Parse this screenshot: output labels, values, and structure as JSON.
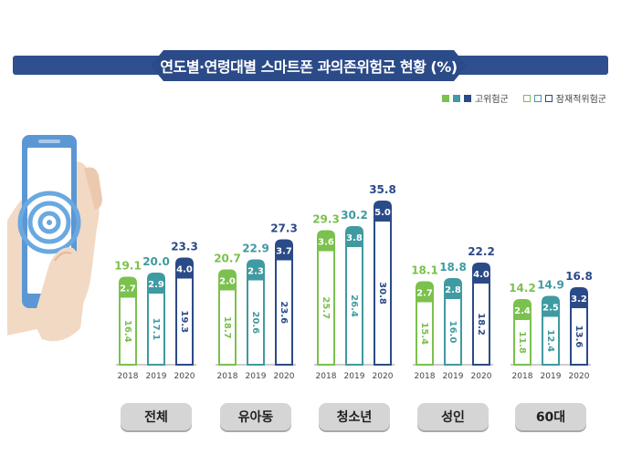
{
  "title": "연도별·연령대별 스마트폰 과의존위험군 현황 (%)",
  "legend": {
    "high_risk": "고위험군",
    "potential_risk": "잠재적위험군"
  },
  "colors": {
    "green": "#7ac14d",
    "teal": "#3f9aa1",
    "navy": "#2b4a88"
  },
  "chart_data": {
    "type": "bar",
    "stacked": true,
    "title": "연도별·연령대별 스마트폰 과의존위험군 현황 (%)",
    "groups": [
      "전체",
      "유아동",
      "청소년",
      "성인",
      "60대"
    ],
    "years": [
      "2018",
      "2019",
      "2020"
    ],
    "series": [
      {
        "name": "잠재적위험군",
        "values": [
          [
            16.4,
            17.1,
            19.3
          ],
          [
            18.7,
            20.6,
            23.6
          ],
          [
            25.7,
            26.4,
            30.8
          ],
          [
            15.4,
            16.0,
            18.2
          ],
          [
            11.8,
            12.4,
            13.6
          ]
        ]
      },
      {
        "name": "고위험군",
        "values": [
          [
            2.7,
            2.9,
            4.0
          ],
          [
            2.0,
            2.3,
            3.7
          ],
          [
            3.6,
            3.8,
            5.0
          ],
          [
            2.7,
            2.8,
            4.0
          ],
          [
            2.4,
            2.5,
            3.2
          ]
        ]
      }
    ],
    "totals": [
      [
        19.1,
        20.0,
        23.3
      ],
      [
        20.7,
        22.9,
        27.3
      ],
      [
        29.3,
        30.2,
        35.8
      ],
      [
        18.1,
        18.8,
        22.2
      ],
      [
        14.2,
        14.9,
        16.8
      ]
    ],
    "ylim": [
      0,
      40
    ],
    "legend_position": "top-right"
  }
}
